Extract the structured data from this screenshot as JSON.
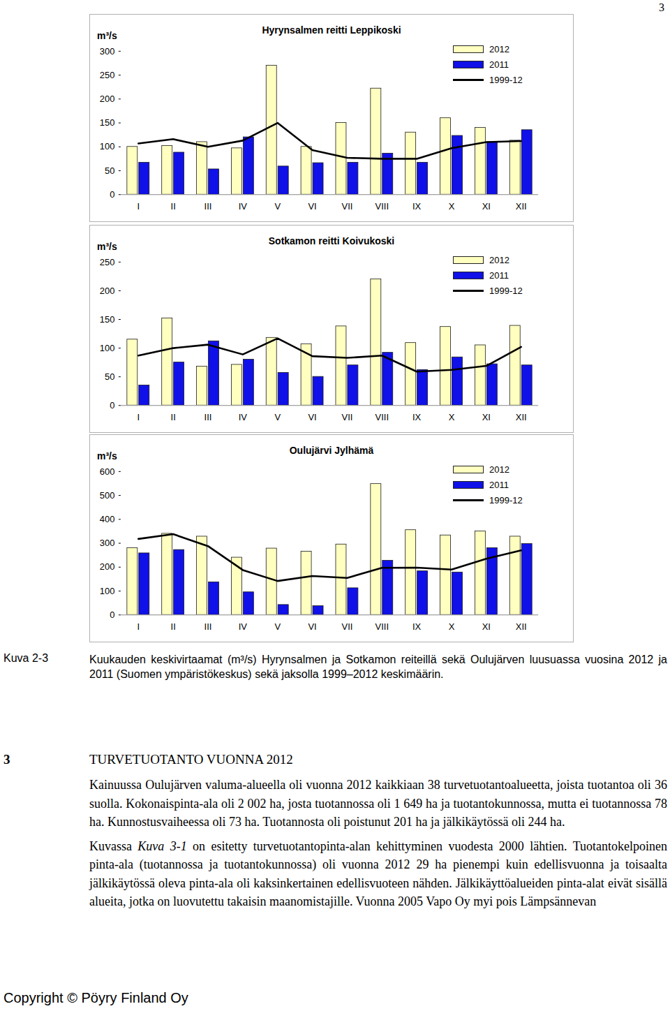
{
  "page_number": "3",
  "chart_data": [
    {
      "type": "bar",
      "title": "Hyrynsalmen reitti Leppikoski",
      "ylabel": "m³/s",
      "categories": [
        "I",
        "II",
        "III",
        "IV",
        "V",
        "VI",
        "VII",
        "VIII",
        "IX",
        "X",
        "XI",
        "XII"
      ],
      "series": [
        {
          "name": "2012",
          "type": "bar",
          "color": "#ffffc0",
          "values": [
            100,
            102,
            110,
            97,
            270,
            100,
            150,
            222,
            130,
            160,
            140,
            113
          ]
        },
        {
          "name": "2011",
          "type": "bar",
          "color": "#1010e8",
          "values": [
            67,
            88,
            53,
            120,
            59,
            66,
            67,
            86,
            67,
            123,
            110,
            135
          ]
        },
        {
          "name": "1999-12",
          "type": "line",
          "color": "#000000",
          "values": [
            107,
            116,
            100,
            113,
            150,
            93,
            77,
            75,
            75,
            97,
            110,
            112
          ]
        }
      ],
      "ylim": [
        0,
        300
      ],
      "yticks": [
        0,
        50,
        100,
        150,
        200,
        250,
        300
      ],
      "grid": false,
      "legend": "top-right"
    },
    {
      "type": "bar",
      "title": "Sotkamon reitti Koivukoski",
      "ylabel": "m³/s",
      "categories": [
        "I",
        "II",
        "III",
        "IV",
        "V",
        "VI",
        "VII",
        "VIII",
        "IX",
        "X",
        "XI",
        "XII"
      ],
      "series": [
        {
          "name": "2012",
          "type": "bar",
          "color": "#ffffc0",
          "values": [
            115,
            152,
            68,
            71,
            118,
            107,
            138,
            220,
            109,
            137,
            105,
            139
          ]
        },
        {
          "name": "2011",
          "type": "bar",
          "color": "#1010e8",
          "values": [
            35,
            75,
            112,
            80,
            57,
            50,
            70,
            92,
            62,
            84,
            72,
            70
          ]
        },
        {
          "name": "1999-12",
          "type": "line",
          "color": "#000000",
          "values": [
            87,
            100,
            106,
            89,
            117,
            86,
            83,
            87,
            59,
            62,
            69,
            102
          ]
        }
      ],
      "ylim": [
        0,
        250
      ],
      "yticks": [
        0,
        50,
        100,
        150,
        200,
        250
      ],
      "grid": false,
      "legend": "top-right"
    },
    {
      "type": "bar",
      "title": "Oulujärvi Jylhämä",
      "ylabel": "m³/s",
      "categories": [
        "I",
        "II",
        "III",
        "IV",
        "V",
        "VI",
        "VII",
        "VIII",
        "IX",
        "X",
        "XI",
        "XII"
      ],
      "series": [
        {
          "name": "2012",
          "type": "bar",
          "color": "#ffffc0",
          "values": [
            280,
            340,
            328,
            240,
            278,
            265,
            295,
            548,
            355,
            333,
            350,
            328
          ]
        },
        {
          "name": "2011",
          "type": "bar",
          "color": "#1010e8",
          "values": [
            258,
            272,
            137,
            95,
            42,
            37,
            112,
            227,
            183,
            178,
            280,
            297
          ]
        },
        {
          "name": "1999-12",
          "type": "line",
          "color": "#000000",
          "values": [
            318,
            338,
            288,
            188,
            142,
            163,
            155,
            197,
            198,
            190,
            235,
            270
          ]
        }
      ],
      "ylim": [
        0,
        600
      ],
      "yticks": [
        0,
        100,
        200,
        300,
        400,
        500,
        600
      ],
      "grid": false,
      "legend": "top-right"
    }
  ],
  "caption": {
    "label": "Kuva 2-3",
    "text": "Kuukauden keskivirtaamat (m³/s) Hyrynsalmen ja Sotkamon reiteillä sekä Oulujärven luusuassa vuosina 2012 ja 2011 (Suomen ympäristökeskus) sekä jaksolla 1999–2012 keskimäärin."
  },
  "section": {
    "number": "3",
    "title": "TURVETUOTANTO VUONNA 2012"
  },
  "paragraphs": [
    [
      {
        "text": "Kainuussa Oulujärven valuma-alueella oli vuonna 2012 kaikkiaan 38 turvetuotantoalueetta, joista tuotantoa oli 36 suolla. Kokonaispinta-ala oli 2 002 ha, josta tuotannossa oli 1 649 ha ja tuotantokunnossa, mutta ei tuotannossa 78 ha. Kunnostusvaiheessa oli 73 ha. Tuotannosta oli poistunut 201 ha ja jälkikäytössä oli 244 ha.",
        "italic": false
      }
    ],
    [
      {
        "text": "Kuvassa ",
        "italic": false
      },
      {
        "text": "Kuva 3-1",
        "italic": true
      },
      {
        "text": " on esitetty turvetuotantopinta-alan kehittyminen vuodesta 2000 lähtien. Tuotantokelpoinen pinta-ala (tuotannossa ja tuotantokunnossa) oli vuonna 2012 29 ha pienempi kuin edellisvuonna ja toisaalta jälkikäytössä oleva pinta-ala oli kaksinkertainen edellisvuoteen nähden. Jälkikäyttöalueiden pinta-alat eivät sisällä alueita, jotka on luovutettu takaisin maanomistajille. Vuonna 2005 Vapo Oy myi pois Lämpsännevan",
        "italic": false
      }
    ]
  ],
  "footer": "Copyright © Pöyry Finland Oy"
}
